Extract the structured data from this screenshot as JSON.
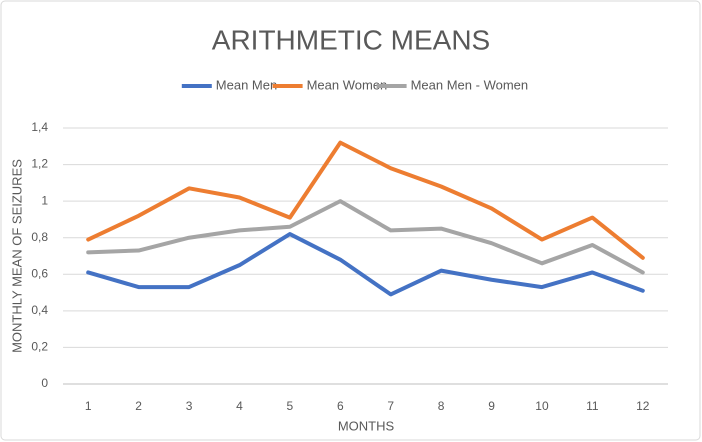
{
  "chart_data": {
    "type": "line",
    "title": "ARITHMETIC MEANS",
    "x_label": "MONTHS",
    "y_label": "MONTHLY MEAN OF SEIZURES",
    "categories": [
      "1",
      "2",
      "3",
      "4",
      "5",
      "6",
      "7",
      "8",
      "9",
      "10",
      "11",
      "12"
    ],
    "series": [
      {
        "name": "Mean Men",
        "color": "#4472c4",
        "values": [
          0.61,
          0.53,
          0.53,
          0.65,
          0.82,
          0.68,
          0.49,
          0.62,
          0.57,
          0.53,
          0.61,
          0.51
        ]
      },
      {
        "name": "Mean Women",
        "color": "#ed7d31",
        "values": [
          0.79,
          0.92,
          1.07,
          1.02,
          0.91,
          1.32,
          1.18,
          1.08,
          0.96,
          0.79,
          0.91,
          0.69
        ]
      },
      {
        "name": "Mean Men - Women",
        "color": "#a5a5a5",
        "values": [
          0.72,
          0.73,
          0.8,
          0.84,
          0.86,
          1.0,
          0.84,
          0.85,
          0.77,
          0.66,
          0.76,
          0.61
        ]
      }
    ],
    "ylim": [
      0,
      1.4
    ],
    "yticks": [
      0,
      {
        "value": 0.2,
        "label": "0,2"
      },
      {
        "value": 0.4,
        "label": "0,4"
      },
      {
        "value": 0.6,
        "label": "0,6"
      },
      {
        "value": 0.8,
        "label": "0,8"
      },
      1,
      {
        "value": 1.2,
        "label": "1,2"
      },
      {
        "value": 1.4,
        "label": "1,4"
      }
    ],
    "grid": true,
    "legend": "top"
  }
}
